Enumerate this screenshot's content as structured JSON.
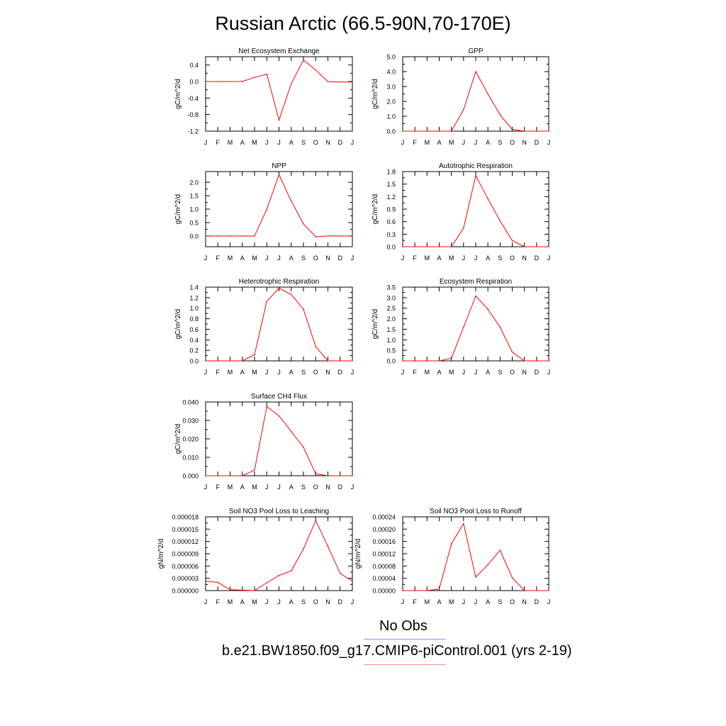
{
  "figure": {
    "title": "Russian Arctic (66.5-90N,70-170E)",
    "legend": {
      "obs_label": "No Obs",
      "obs_color": "#8c8cff",
      "model_label": "b.e21.BW1850.f09_g17.CMIP6-piControl.001 (yrs 2-19)",
      "model_color": "#ff8c8c"
    }
  },
  "colors": {
    "series": "#ff0000",
    "axis": "#000000"
  },
  "chart_data": [
    {
      "type": "line",
      "title": "Net Ecosystem Exchange",
      "ylabel": "gC/m^2/d",
      "categories": [
        "J",
        "F",
        "M",
        "A",
        "M",
        "J",
        "J",
        "A",
        "S",
        "O",
        "N",
        "D",
        "J"
      ],
      "ylim": [
        -1.2,
        0.6
      ],
      "yticks": [
        "0.4",
        "0.0",
        "-0.4",
        "-0.8",
        "-1.2"
      ],
      "yticks_values": [
        0.4,
        0.0,
        -0.4,
        -0.8,
        -1.2
      ],
      "values": [
        0.0,
        0.0,
        0.0,
        0.0,
        0.1,
        0.18,
        -0.93,
        -0.05,
        0.52,
        0.28,
        0.0,
        -0.01,
        -0.01
      ]
    },
    {
      "type": "line",
      "title": "GPP",
      "ylabel": "gC/m^2/d",
      "categories": [
        "J",
        "F",
        "M",
        "A",
        "M",
        "J",
        "J",
        "A",
        "S",
        "O",
        "N",
        "D",
        "J"
      ],
      "ylim": [
        0.0,
        5.0
      ],
      "yticks": [
        "5.0",
        "4.0",
        "3.0",
        "2.0",
        "1.0",
        "0.0"
      ],
      "yticks_values": [
        5.0,
        4.0,
        3.0,
        2.0,
        1.0,
        0.0
      ],
      "values": [
        0.0,
        0.0,
        0.0,
        0.0,
        0.0,
        1.45,
        4.0,
        2.5,
        1.1,
        0.12,
        0.0,
        0.0,
        0.0
      ]
    },
    {
      "type": "line",
      "title": "NPP",
      "ylabel": "gC/m^2/d",
      "categories": [
        "J",
        "F",
        "M",
        "A",
        "M",
        "J",
        "J",
        "A",
        "S",
        "O",
        "N",
        "D",
        "J"
      ],
      "ylim": [
        -0.4,
        2.4
      ],
      "yticks": [
        "2.0",
        "1.5",
        "1.0",
        "0.5",
        "0.0"
      ],
      "yticks_values": [
        2.0,
        1.5,
        1.0,
        0.5,
        0.0
      ],
      "values": [
        0.0,
        0.0,
        0.0,
        0.0,
        0.0,
        1.0,
        2.28,
        1.3,
        0.45,
        -0.03,
        0.0,
        0.0,
        0.0
      ]
    },
    {
      "type": "line",
      "title": "Autotrophic Respiration",
      "ylabel": "gC/m^2/d",
      "categories": [
        "J",
        "F",
        "M",
        "A",
        "M",
        "J",
        "J",
        "A",
        "S",
        "O",
        "N",
        "D",
        "J"
      ],
      "ylim": [
        0.0,
        1.8
      ],
      "yticks": [
        "1.8",
        "1.5",
        "1.2",
        "0.9",
        "0.6",
        "0.3",
        "0.0"
      ],
      "yticks_values": [
        1.8,
        1.5,
        1.2,
        0.9,
        0.6,
        0.3,
        0.0
      ],
      "values": [
        0.0,
        0.0,
        0.0,
        0.0,
        0.0,
        0.45,
        1.7,
        1.15,
        0.62,
        0.15,
        0.0,
        0.0,
        0.0
      ]
    },
    {
      "type": "line",
      "title": "Heterotrophic Respiration",
      "ylabel": "gC/m^2/d",
      "categories": [
        "J",
        "F",
        "M",
        "A",
        "M",
        "J",
        "J",
        "A",
        "S",
        "O",
        "N",
        "D",
        "J"
      ],
      "ylim": [
        0.0,
        1.4
      ],
      "yticks": [
        "1.4",
        "1.2",
        "1.0",
        "0.8",
        "0.6",
        "0.4",
        "0.2",
        "0.0"
      ],
      "yticks_values": [
        1.4,
        1.2,
        1.0,
        0.8,
        0.6,
        0.4,
        0.2,
        0.0
      ],
      "values": [
        0.0,
        0.0,
        0.0,
        0.0,
        0.12,
        1.13,
        1.38,
        1.26,
        0.98,
        0.27,
        0.0,
        0.0,
        0.0
      ]
    },
    {
      "type": "line",
      "title": "Ecosystem Respiration",
      "ylabel": "gC/m^2/d",
      "categories": [
        "J",
        "F",
        "M",
        "A",
        "M",
        "J",
        "J",
        "A",
        "S",
        "O",
        "N",
        "D",
        "J"
      ],
      "ylim": [
        0.0,
        3.5
      ],
      "yticks": [
        "3.5",
        "3.0",
        "2.5",
        "2.0",
        "1.5",
        "1.0",
        "0.5",
        "0.0"
      ],
      "yticks_values": [
        3.5,
        3.0,
        2.5,
        2.0,
        1.5,
        1.0,
        0.5,
        0.0
      ],
      "values": [
        0.0,
        0.0,
        0.0,
        0.0,
        0.12,
        1.6,
        3.08,
        2.45,
        1.6,
        0.42,
        0.0,
        0.0,
        0.0
      ]
    },
    {
      "type": "line",
      "title": "Surface CH4 Flux",
      "ylabel": "gC/m^2/d",
      "categories": [
        "J",
        "F",
        "M",
        "A",
        "M",
        "J",
        "J",
        "A",
        "S",
        "O",
        "N",
        "D",
        "J"
      ],
      "ylim": [
        0.0,
        0.04
      ],
      "yticks": [
        "0.040",
        "0.030",
        "0.020",
        "0.010",
        "0.000"
      ],
      "yticks_values": [
        0.04,
        0.03,
        0.02,
        0.01,
        0.0
      ],
      "values": [
        0.0,
        0.0,
        0.0,
        0.0,
        0.003,
        0.0375,
        0.0325,
        0.024,
        0.0155,
        0.001,
        0.0,
        0.0,
        0.0
      ]
    },
    {
      "type": "line",
      "title": "Soil NO3 Pool Loss to Leaching",
      "ylabel": "gN/m^2/d",
      "categories": [
        "J",
        "F",
        "M",
        "A",
        "M",
        "J",
        "J",
        "A",
        "S",
        "O",
        "N",
        "D",
        "J"
      ],
      "ylim": [
        0.0,
        1.8e-05
      ],
      "yticks": [
        "0.000018",
        "0.000015",
        "0.000012",
        "0.000009",
        "0.000006",
        "0.000003",
        "0.000000"
      ],
      "yticks_values": [
        1.8e-05,
        1.5e-05,
        1.2e-05,
        9e-06,
        6e-06,
        3e-06,
        0.0
      ],
      "values": [
        2.3e-06,
        2e-06,
        2e-07,
        1e-07,
        0.0,
        1.9e-06,
        3.7e-06,
        4.8e-06,
        1.02e-05,
        1.71e-05,
        1.08e-05,
        4.2e-06,
        2.3e-06
      ]
    },
    {
      "type": "line",
      "title": "Soil NO3 Pool Loss to Runoff",
      "ylabel": "gN/m^2/d",
      "categories": [
        "J",
        "F",
        "M",
        "A",
        "M",
        "J",
        "J",
        "A",
        "S",
        "O",
        "N",
        "D",
        "J"
      ],
      "ylim": [
        0.0,
        0.00024
      ],
      "yticks": [
        "0.00024",
        "0.00020",
        "0.00016",
        "0.00012",
        "0.00008",
        "0.00004",
        "0.00000"
      ],
      "yticks_values": [
        0.00024,
        0.0002,
        0.00016,
        0.00012,
        8e-05,
        4e-05,
        0.0
      ],
      "values": [
        0.0,
        0.0,
        0.0,
        5e-06,
        0.000152,
        0.000218,
        4.4e-05,
        8.4e-05,
        0.000131,
        4.2e-05,
        0.0,
        0.0,
        0.0
      ]
    }
  ]
}
